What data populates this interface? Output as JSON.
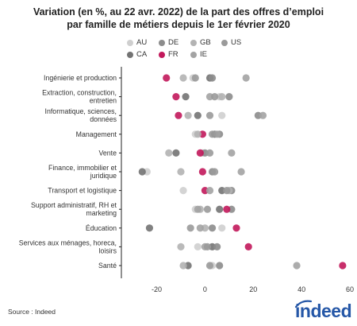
{
  "title_line1": "Variation (en %, au 22 avr. 2022) de la part des offres d’emploi",
  "title_line2": "par famille de métiers depuis le 1er février 2020",
  "source": "Source : Indeed",
  "logo": "indeed",
  "colors": {
    "accent": "#2557a7"
  },
  "chart_data": {
    "type": "scatter",
    "title": "Variation (en %, au 22 avr. 2022) de la part des offres d’emploi par famille de métiers depuis le 1er février 2020",
    "xlim": [
      -33,
      60
    ],
    "x_ticks": [
      -20,
      0,
      20,
      40,
      60
    ],
    "x_tick_labels": [
      "-20",
      "0",
      "20",
      "40",
      "60"
    ],
    "grid": false,
    "legend_position": "top",
    "categories": [
      "Ingénierie et production",
      "Extraction, construction, entretien",
      "Informatique, sciences, données",
      "Management",
      "Vente",
      "Finance, immobilier et juridique",
      "Transport et logistique",
      "Support administratif, RH et marketing",
      "Éducation",
      "Services aux ménages, horeca, loisirs",
      "Santé"
    ],
    "category_lines": [
      [
        "Ingénierie et production"
      ],
      [
        "Extraction, construction,",
        "entretien"
      ],
      [
        "Informatique, sciences,",
        "données"
      ],
      [
        "Management"
      ],
      [
        "Vente"
      ],
      [
        "Finance, immobilier et",
        "juridique"
      ],
      [
        "Transport et logistique"
      ],
      [
        "Support administratif, RH et",
        "marketing"
      ],
      [
        "Éducation"
      ],
      [
        "Services aux ménages, horeca,",
        "loisirs"
      ],
      [
        "Santé"
      ]
    ],
    "series": [
      {
        "name": "AU",
        "color": "#cfcfcf",
        "values": [
          -5,
          6,
          7,
          -4,
          -1,
          -24,
          -9,
          -4,
          7,
          -3,
          3
        ]
      },
      {
        "name": "CA",
        "color": "#737373",
        "values": [
          2,
          -8,
          -3,
          4,
          -12,
          -26,
          7,
          6,
          -23,
          3,
          -7
        ]
      },
      {
        "name": "DE",
        "color": "#8c8c8c",
        "values": [
          3,
          10,
          22,
          6,
          0,
          3,
          11,
          11,
          3,
          5,
          6
        ]
      },
      {
        "name": "FR",
        "color": "#c2185b",
        "values": [
          -16,
          -12,
          -11,
          -1,
          -2,
          -1,
          0,
          9,
          13,
          18,
          57
        ]
      },
      {
        "name": "GB",
        "color": "#b3b3b3",
        "values": [
          -9,
          7,
          -7,
          -3,
          -15,
          -10,
          10,
          -2,
          0,
          -10,
          -9
        ]
      },
      {
        "name": "IE",
        "color": "#a3a3a3",
        "values": [
          17,
          2,
          24,
          5,
          11,
          15,
          2,
          -3,
          -2,
          0,
          38
        ]
      },
      {
        "name": "US",
        "color": "#9a9a9a",
        "values": [
          -4,
          4,
          2,
          3,
          2,
          4,
          9,
          1,
          -6,
          1,
          2
        ]
      }
    ]
  }
}
